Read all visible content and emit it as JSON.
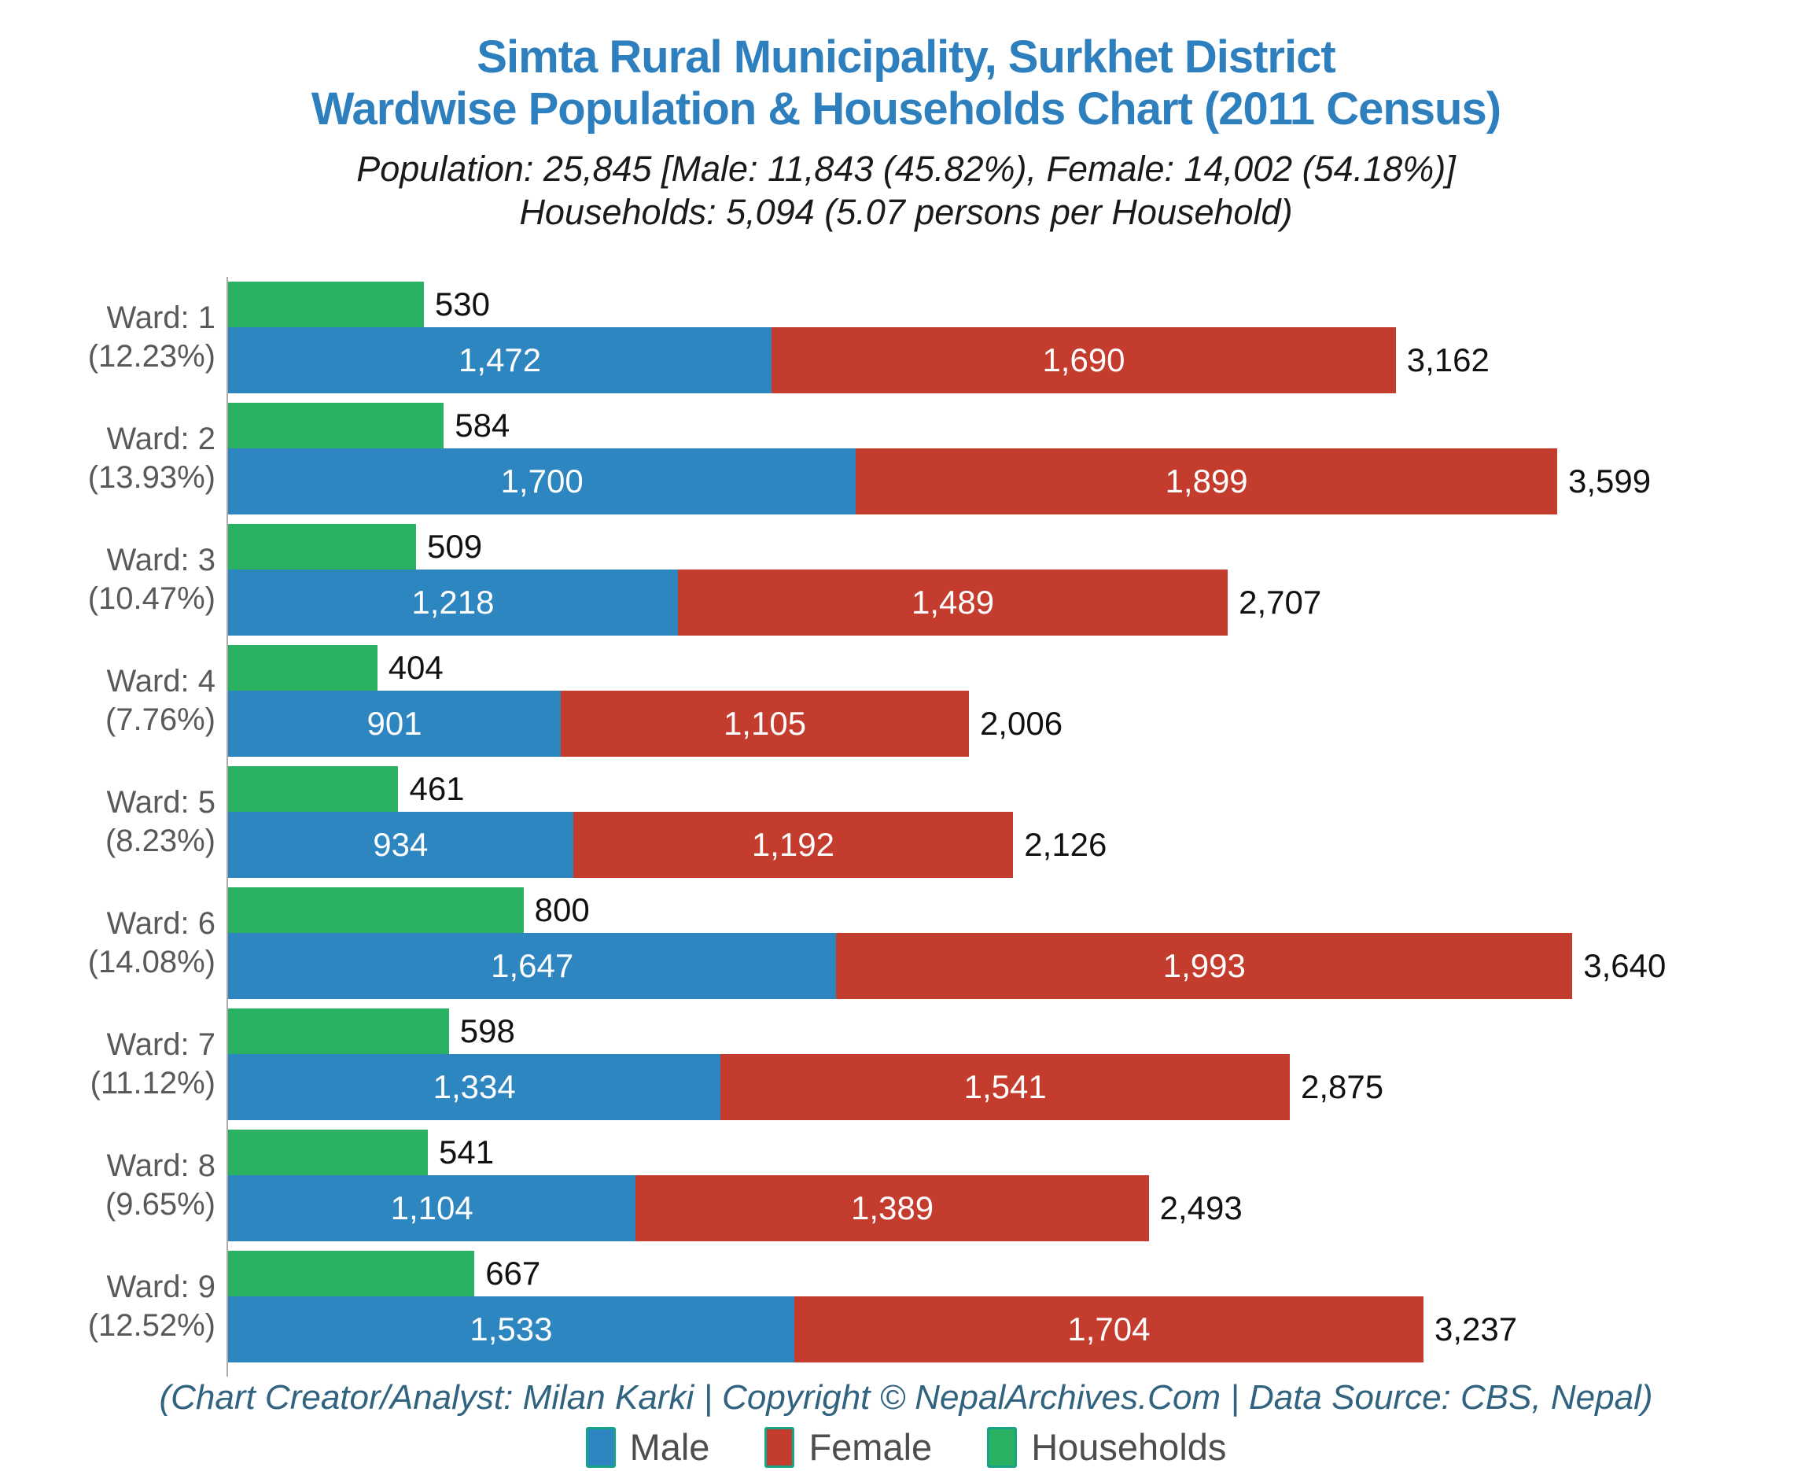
{
  "title": {
    "line1": "Simta Rural Municipality, Surkhet District",
    "line2": "Wardwise Population & Households Chart (2011 Census)"
  },
  "subtitle": {
    "line1": "Population: 25,845 [Male: 11,843 (45.82%), Female: 14,002 (54.18%)]",
    "line2": "Households: 5,094 (5.07 persons per Household)"
  },
  "footer": "(Chart Creator/Analyst: Milan Karki | Copyright © NepalArchives.Com | Data Source: CBS, Nepal)",
  "colors": {
    "male": "#2E86C1",
    "female": "#C33C2D",
    "households": "#2BB162",
    "title": "#2E7FBD",
    "footer_text": "#30637F",
    "ward_label": "#595959",
    "axis_line": "#ABABAB",
    "legend_swatch_border": "#17A589",
    "bar_inner_label": "#FFFFFF",
    "bar_outer_label": "#111111"
  },
  "legend": {
    "items": [
      {
        "label": "Male",
        "color": "#2E86C1"
      },
      {
        "label": "Female",
        "color": "#C33C2D"
      },
      {
        "label": "Households",
        "color": "#2BB162"
      }
    ]
  },
  "chart_data": {
    "type": "bar",
    "orientation": "horizontal",
    "stacked_series": [
      "Male",
      "Female"
    ],
    "title": "Simta Rural Municipality, Surkhet District — Wardwise Population & Households Chart (2011 Census)",
    "categories": [
      "Ward: 1",
      "Ward: 2",
      "Ward: 3",
      "Ward: 4",
      "Ward: 5",
      "Ward: 6",
      "Ward: 7",
      "Ward: 8",
      "Ward: 9"
    ],
    "category_percents": [
      "12.23%",
      "13.93%",
      "10.47%",
      "7.76%",
      "8.23%",
      "14.08%",
      "11.12%",
      "9.65%",
      "12.52%"
    ],
    "series": [
      {
        "name": "Male",
        "color": "#2E86C1",
        "values": [
          1472,
          1700,
          1218,
          901,
          934,
          1647,
          1334,
          1104,
          1533
        ]
      },
      {
        "name": "Female",
        "color": "#C33C2D",
        "values": [
          1690,
          1899,
          1489,
          1105,
          1192,
          1993,
          1541,
          1389,
          1704
        ]
      },
      {
        "name": "Households",
        "color": "#2BB162",
        "values": [
          530,
          584,
          509,
          404,
          461,
          800,
          598,
          541,
          667
        ]
      }
    ],
    "totals": [
      3162,
      3599,
      2707,
      2006,
      2126,
      3640,
      2875,
      2493,
      3237
    ],
    "summary": {
      "population_total": 25845,
      "male_total": 11843,
      "male_percent": "45.82%",
      "female_total": 14002,
      "female_percent": "54.18%",
      "households_total": 5094,
      "persons_per_household": 5.07
    },
    "xlim": [
      0,
      4289
    ],
    "grid": false,
    "legend_position": "bottom"
  }
}
